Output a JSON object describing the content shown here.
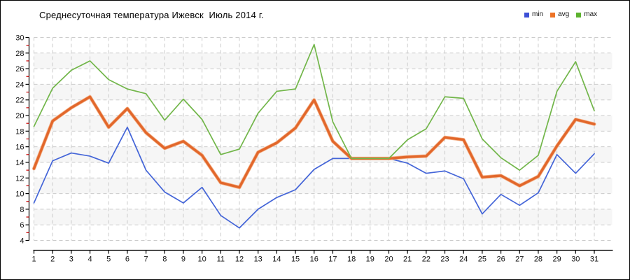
{
  "window": {
    "type_hint": "static temperature chart"
  },
  "title": "Среднесуточная температура Ижевск  Июль 2014 г.",
  "colors": {
    "background": "#ffffff",
    "band_fill": "#f6f6f6",
    "gridline": "#cbcbcb",
    "axis": "#000000",
    "minor_tick": "#cc0000",
    "text": "#111111"
  },
  "legend": {
    "position": "top-right",
    "items": [
      {
        "label": "min",
        "color": "#3c4fd6"
      },
      {
        "label": "avg",
        "color": "#ed7326"
      },
      {
        "label": "max",
        "color": "#5cb22e"
      }
    ]
  },
  "chart_data": {
    "type": "line",
    "title": "Среднесуточная температура Ижевск  Июль 2014 г.",
    "xlabel": "",
    "ylabel": "",
    "ylim": [
      4,
      30
    ],
    "y_ticks": [
      30,
      28,
      26,
      24,
      22,
      20,
      18,
      16,
      14,
      12,
      10,
      8,
      6,
      4
    ],
    "y_minor_ticks": [
      29,
      27,
      25,
      23,
      21,
      19,
      17,
      15,
      13,
      11,
      9,
      7,
      5
    ],
    "grid": "dashed, alternating shaded bands every 2 units",
    "legend_position": "top-right",
    "x": [
      1,
      2,
      3,
      4,
      5,
      6,
      7,
      8,
      9,
      10,
      11,
      12,
      13,
      14,
      15,
      16,
      17,
      18,
      19,
      20,
      21,
      22,
      23,
      24,
      25,
      26,
      27,
      28,
      29,
      30,
      31
    ],
    "series": [
      {
        "name": "min",
        "color": "#4465d8",
        "values": [
          8.8,
          14.2,
          15.2,
          14.8,
          13.9,
          18.5,
          13.0,
          10.2,
          8.8,
          10.8,
          7.2,
          5.6,
          8.0,
          9.5,
          10.5,
          13.1,
          14.5,
          14.5,
          14.5,
          14.5,
          13.9,
          12.6,
          12.9,
          11.9,
          7.4,
          9.9,
          8.5,
          10.1,
          15.0,
          12.6,
          15.1
        ]
      },
      {
        "name": "avg",
        "color": "#e2672b",
        "halo": "#f4b48c",
        "values": [
          13.2,
          19.3,
          21.0,
          22.4,
          18.5,
          20.9,
          17.8,
          15.8,
          16.7,
          14.9,
          11.4,
          10.8,
          15.3,
          16.5,
          18.4,
          22.0,
          16.7,
          14.5,
          14.5,
          14.5,
          14.7,
          14.8,
          17.2,
          16.9,
          12.1,
          12.3,
          11.0,
          12.2,
          16.1,
          19.5,
          18.9
        ]
      },
      {
        "name": "max",
        "color": "#72b64a",
        "values": [
          18.6,
          23.5,
          25.8,
          27.0,
          24.6,
          23.4,
          22.8,
          19.4,
          22.1,
          19.5,
          15.0,
          15.7,
          20.3,
          23.1,
          23.4,
          29.1,
          19.2,
          14.5,
          14.5,
          14.5,
          16.9,
          18.3,
          22.4,
          22.2,
          17.0,
          14.6,
          13.0,
          14.9,
          23.1,
          26.9,
          20.6
        ]
      }
    ]
  }
}
